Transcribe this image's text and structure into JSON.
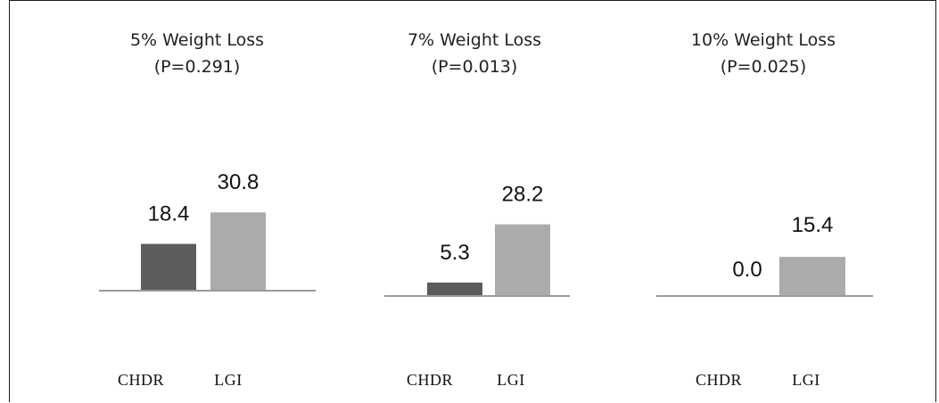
{
  "colors": {
    "chdr": "#5c5c5c",
    "lgi": "#ababab",
    "baseline": "#9a9a9a"
  },
  "chart_data": [
    {
      "type": "bar",
      "title": "5% Weight Loss",
      "subtitle": "(P=0.291)",
      "categories": [
        "CHDR",
        "LGI"
      ],
      "values": [
        18.4,
        30.8
      ],
      "value_labels": [
        "18.4",
        "30.8"
      ],
      "ylim": [
        0,
        40
      ]
    },
    {
      "type": "bar",
      "title": "7% Weight Loss",
      "subtitle": "(P=0.013)",
      "categories": [
        "CHDR",
        "LGI"
      ],
      "values": [
        5.3,
        28.2
      ],
      "value_labels": [
        "5.3",
        "28.2"
      ],
      "ylim": [
        0,
        40
      ]
    },
    {
      "type": "bar",
      "title": "10% Weight Loss",
      "subtitle": "(P=0.025)",
      "categories": [
        "CHDR",
        "LGI"
      ],
      "values": [
        0.0,
        15.4
      ],
      "value_labels": [
        "0.0",
        "15.4"
      ],
      "ylim": [
        0,
        40
      ]
    }
  ]
}
